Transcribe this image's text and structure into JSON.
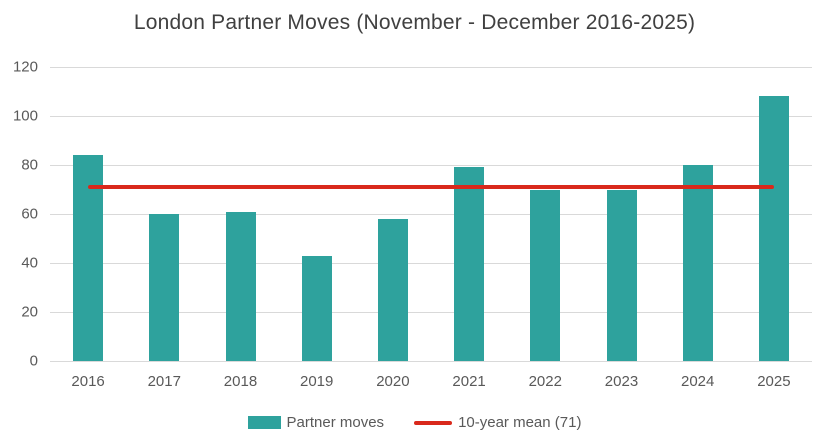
{
  "colors": {
    "bar": "#2EA29D",
    "mean_line": "#D9291C",
    "gridline": "#D9D9D9",
    "title_text": "#404040",
    "axis_text": "#595959"
  },
  "chart_data": {
    "type": "bar",
    "title": "London Partner Moves (November - December 2016-2025)",
    "categories": [
      "2016",
      "2017",
      "2018",
      "2019",
      "2020",
      "2021",
      "2022",
      "2023",
      "2024",
      "2025"
    ],
    "series": [
      {
        "name": "Partner moves",
        "values": [
          84,
          60,
          61,
          43,
          58,
          79,
          70,
          70,
          80,
          108
        ]
      }
    ],
    "mean_line": {
      "label": "10-year mean (71)",
      "value": 71
    },
    "xlabel": "",
    "ylabel": "",
    "ylim": [
      0,
      120
    ],
    "ytick_step": 20,
    "yticks": [
      0,
      20,
      40,
      60,
      80,
      100,
      120
    ],
    "grid": "horizontal",
    "legend_position": "bottom"
  },
  "legend": {
    "bar_label": "Partner moves",
    "mean_label": "10-year mean (71)"
  }
}
